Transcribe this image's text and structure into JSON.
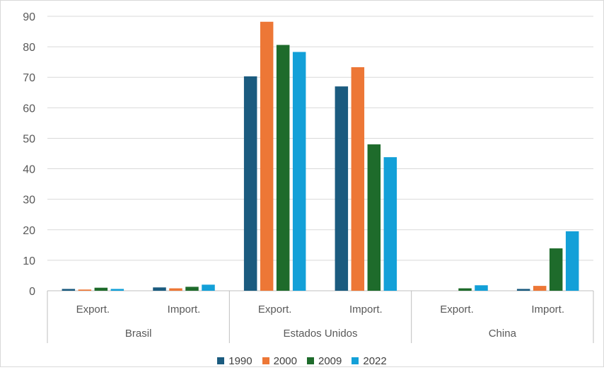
{
  "chart_data": {
    "type": "bar",
    "ylim": [
      0,
      90
    ],
    "yticks": [
      "0",
      "10",
      "20",
      "30",
      "40",
      "50",
      "60",
      "70",
      "80",
      "90"
    ],
    "groups": [
      {
        "name": "Brasil",
        "categories": [
          "Export.",
          "Import."
        ]
      },
      {
        "name": "Estados Unidos",
        "categories": [
          "Export.",
          "Import."
        ]
      },
      {
        "name": "China",
        "categories": [
          "Export.",
          "Import."
        ]
      }
    ],
    "categories": [
      "Export.",
      "Import.",
      "Export.",
      "Import.",
      "Export.",
      "Import."
    ],
    "series": [
      {
        "name": "1990",
        "color": "#1b5b7f",
        "values": [
          0.6,
          1.1,
          70.3,
          67.0,
          0.0,
          0.6
        ]
      },
      {
        "name": "2000",
        "color": "#ed7736",
        "values": [
          0.4,
          0.8,
          88.2,
          73.3,
          0.0,
          1.6
        ]
      },
      {
        "name": "2009",
        "color": "#1e6b2b",
        "values": [
          1.0,
          1.3,
          80.6,
          48.0,
          0.8,
          13.9
        ]
      },
      {
        "name": "2022",
        "color": "#13a0d8",
        "values": [
          0.6,
          2.0,
          78.3,
          43.8,
          1.8,
          19.5
        ]
      }
    ],
    "grid": true,
    "legend": "bottom"
  }
}
